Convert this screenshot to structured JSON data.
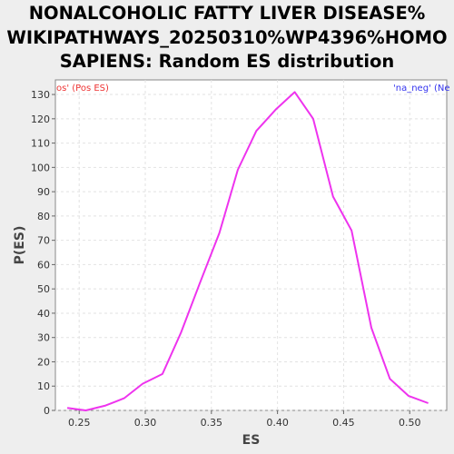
{
  "chart_data": {
    "type": "line",
    "title_lines": [
      "NONALCOHOLIC FATTY LIVER DISEASE%",
      "WIKIPATHWAYS_20250310%WP4396%HOMO",
      "SAPIENS: Random ES distribution"
    ],
    "xlabel": "ES",
    "ylabel": "P(ES)",
    "xlim": [
      0.232,
      0.528
    ],
    "ylim": [
      0,
      136
    ],
    "xticks": [
      0.25,
      0.3,
      0.35,
      0.4,
      0.45,
      0.5
    ],
    "xtick_labels": [
      "0.25",
      "0.30",
      "0.35",
      "0.40",
      "0.45",
      "0.50"
    ],
    "yticks": [
      0,
      10,
      20,
      30,
      40,
      50,
      60,
      70,
      80,
      90,
      100,
      110,
      120,
      130
    ],
    "ytick_labels": [
      "0",
      "10",
      "20",
      "30",
      "40",
      "50",
      "60",
      "70",
      "80",
      "90",
      "100",
      "110",
      "120",
      "130"
    ],
    "grid": true,
    "legend_left": "os' (Pos ES)",
    "legend_right": "'na_neg' (Ne",
    "legend_left_color": "#ee3333",
    "legend_right_color": "#3333ee",
    "line_color": "#ee33ee",
    "series": [
      {
        "x": [
          0.241,
          0.255,
          0.27,
          0.284,
          0.298,
          0.313,
          0.327,
          0.341,
          0.356,
          0.37,
          0.384,
          0.399,
          0.413,
          0.427,
          0.442,
          0.456,
          0.471,
          0.485,
          0.499,
          0.514
        ],
        "y": [
          1,
          0,
          2,
          5,
          11,
          15,
          32,
          52,
          73,
          99,
          115,
          124,
          131,
          120,
          88,
          74,
          34,
          13,
          6,
          3
        ]
      }
    ]
  }
}
